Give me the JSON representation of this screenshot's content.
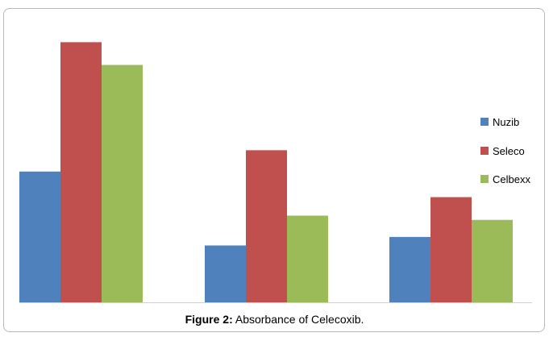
{
  "chart_data": {
    "type": "bar",
    "categories": [
      "",
      "",
      ""
    ],
    "series": [
      {
        "name": "Nuzib",
        "color": "#4f81bd",
        "values": [
          0.92,
          0.4,
          0.46
        ]
      },
      {
        "name": "Seleco",
        "color": "#c0504d",
        "values": [
          1.83,
          1.07,
          0.74
        ]
      },
      {
        "name": "Celbexx",
        "color": "#9bbb59",
        "values": [
          1.67,
          0.61,
          0.58
        ]
      }
    ],
    "ylim": [
      0,
      1.9
    ],
    "grid": false,
    "legend_position": "right",
    "xlabel": "",
    "ylabel": ""
  },
  "caption": {
    "label": "Figure 2:",
    "text": " Absorbance of Celecoxib."
  }
}
